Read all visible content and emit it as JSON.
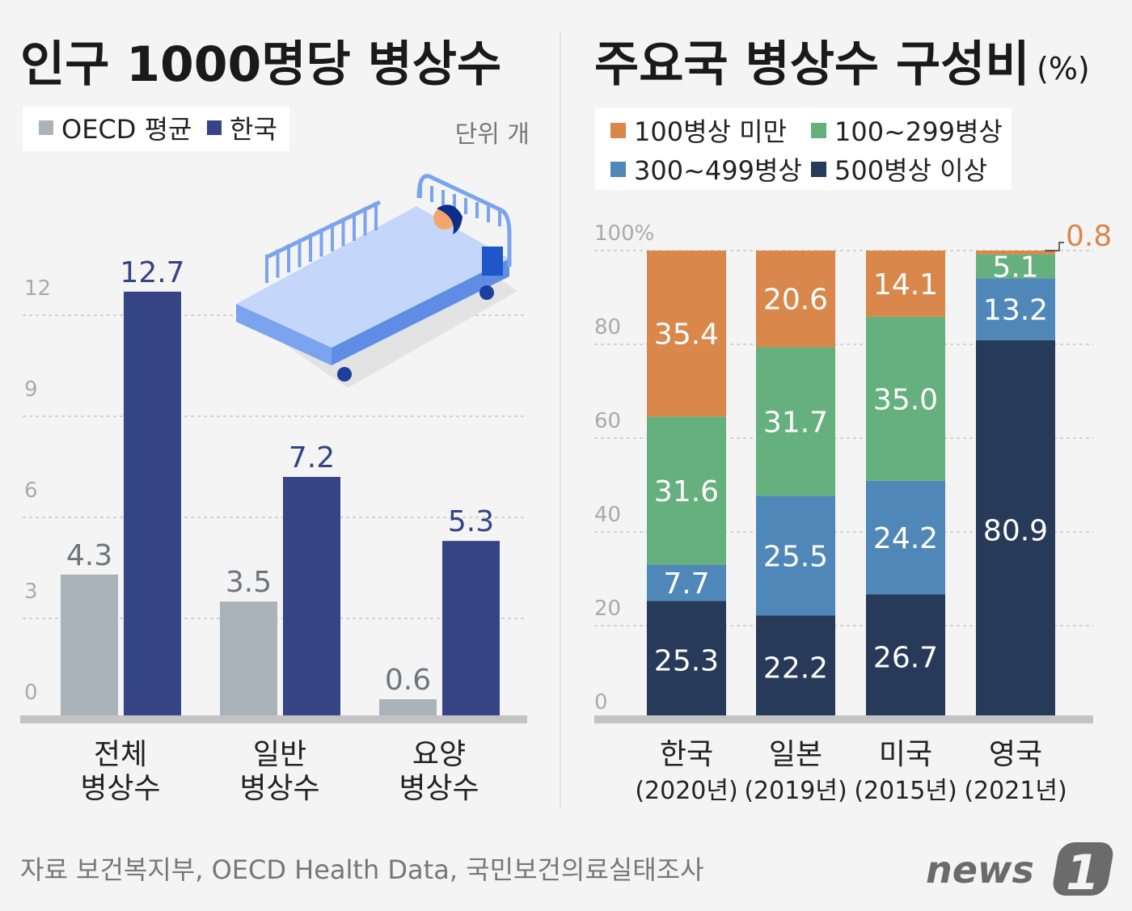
{
  "chart_data": [
    {
      "type": "bar",
      "title": "인구 1000명당 병상수",
      "unit_label": "단위 개",
      "categories": [
        [
          "전체",
          "병상수"
        ],
        [
          "일반",
          "병상수"
        ],
        [
          "요양",
          "병상수"
        ]
      ],
      "yticks": [
        0,
        3,
        6,
        9,
        12
      ],
      "ylim": [
        0,
        12.7
      ],
      "grid": true,
      "legend_position": "top-left",
      "series": [
        {
          "name": "OECD 평균",
          "color": "#a9b3b9",
          "label_color": "#6e767b",
          "values": [
            4.3,
            3.5,
            0.6
          ]
        },
        {
          "name": "한국",
          "color": "#344485",
          "label_color": "#344485",
          "values": [
            12.7,
            7.2,
            5.3
          ]
        }
      ]
    },
    {
      "type": "stacked-bar",
      "title": "주요국 병상수 구성비",
      "title_unit": "(%)",
      "categories": [
        [
          "한국",
          "(2020년)"
        ],
        [
          "일본",
          "(2019년)"
        ],
        [
          "미국",
          "(2015년)"
        ],
        [
          "영국",
          "(2021년)"
        ]
      ],
      "yticks": [
        "0",
        "20",
        "40",
        "60",
        "80",
        "100%"
      ],
      "ylim": [
        0,
        100
      ],
      "grid": true,
      "legend_position": "top",
      "series": [
        {
          "name": "500병상 이상",
          "color": "#283a5a",
          "values": [
            25.3,
            22.2,
            26.7,
            80.9
          ]
        },
        {
          "name": "300~499병상",
          "color": "#4f88b8",
          "values": [
            7.7,
            25.5,
            24.2,
            13.2
          ]
        },
        {
          "name": "100~299병상",
          "color": "#66b07e",
          "values": [
            31.6,
            31.7,
            35.0,
            5.1
          ]
        },
        {
          "name": "100병상 미만",
          "color": "#d9874a",
          "values": [
            35.4,
            20.6,
            14.1,
            0.8
          ]
        }
      ],
      "value_labels": [
        [
          "25.3",
          "7.7",
          "31.6",
          "35.4"
        ],
        [
          "22.2",
          "25.5",
          "31.7",
          "20.6"
        ],
        [
          "26.7",
          "24.2",
          "35.0",
          "14.1"
        ],
        [
          "80.9",
          "13.2",
          "5.1",
          "0.8"
        ]
      ]
    }
  ],
  "source": "자료 보건복지부, OECD Health Data, 국민보건의료실태조사",
  "logo": "news1"
}
